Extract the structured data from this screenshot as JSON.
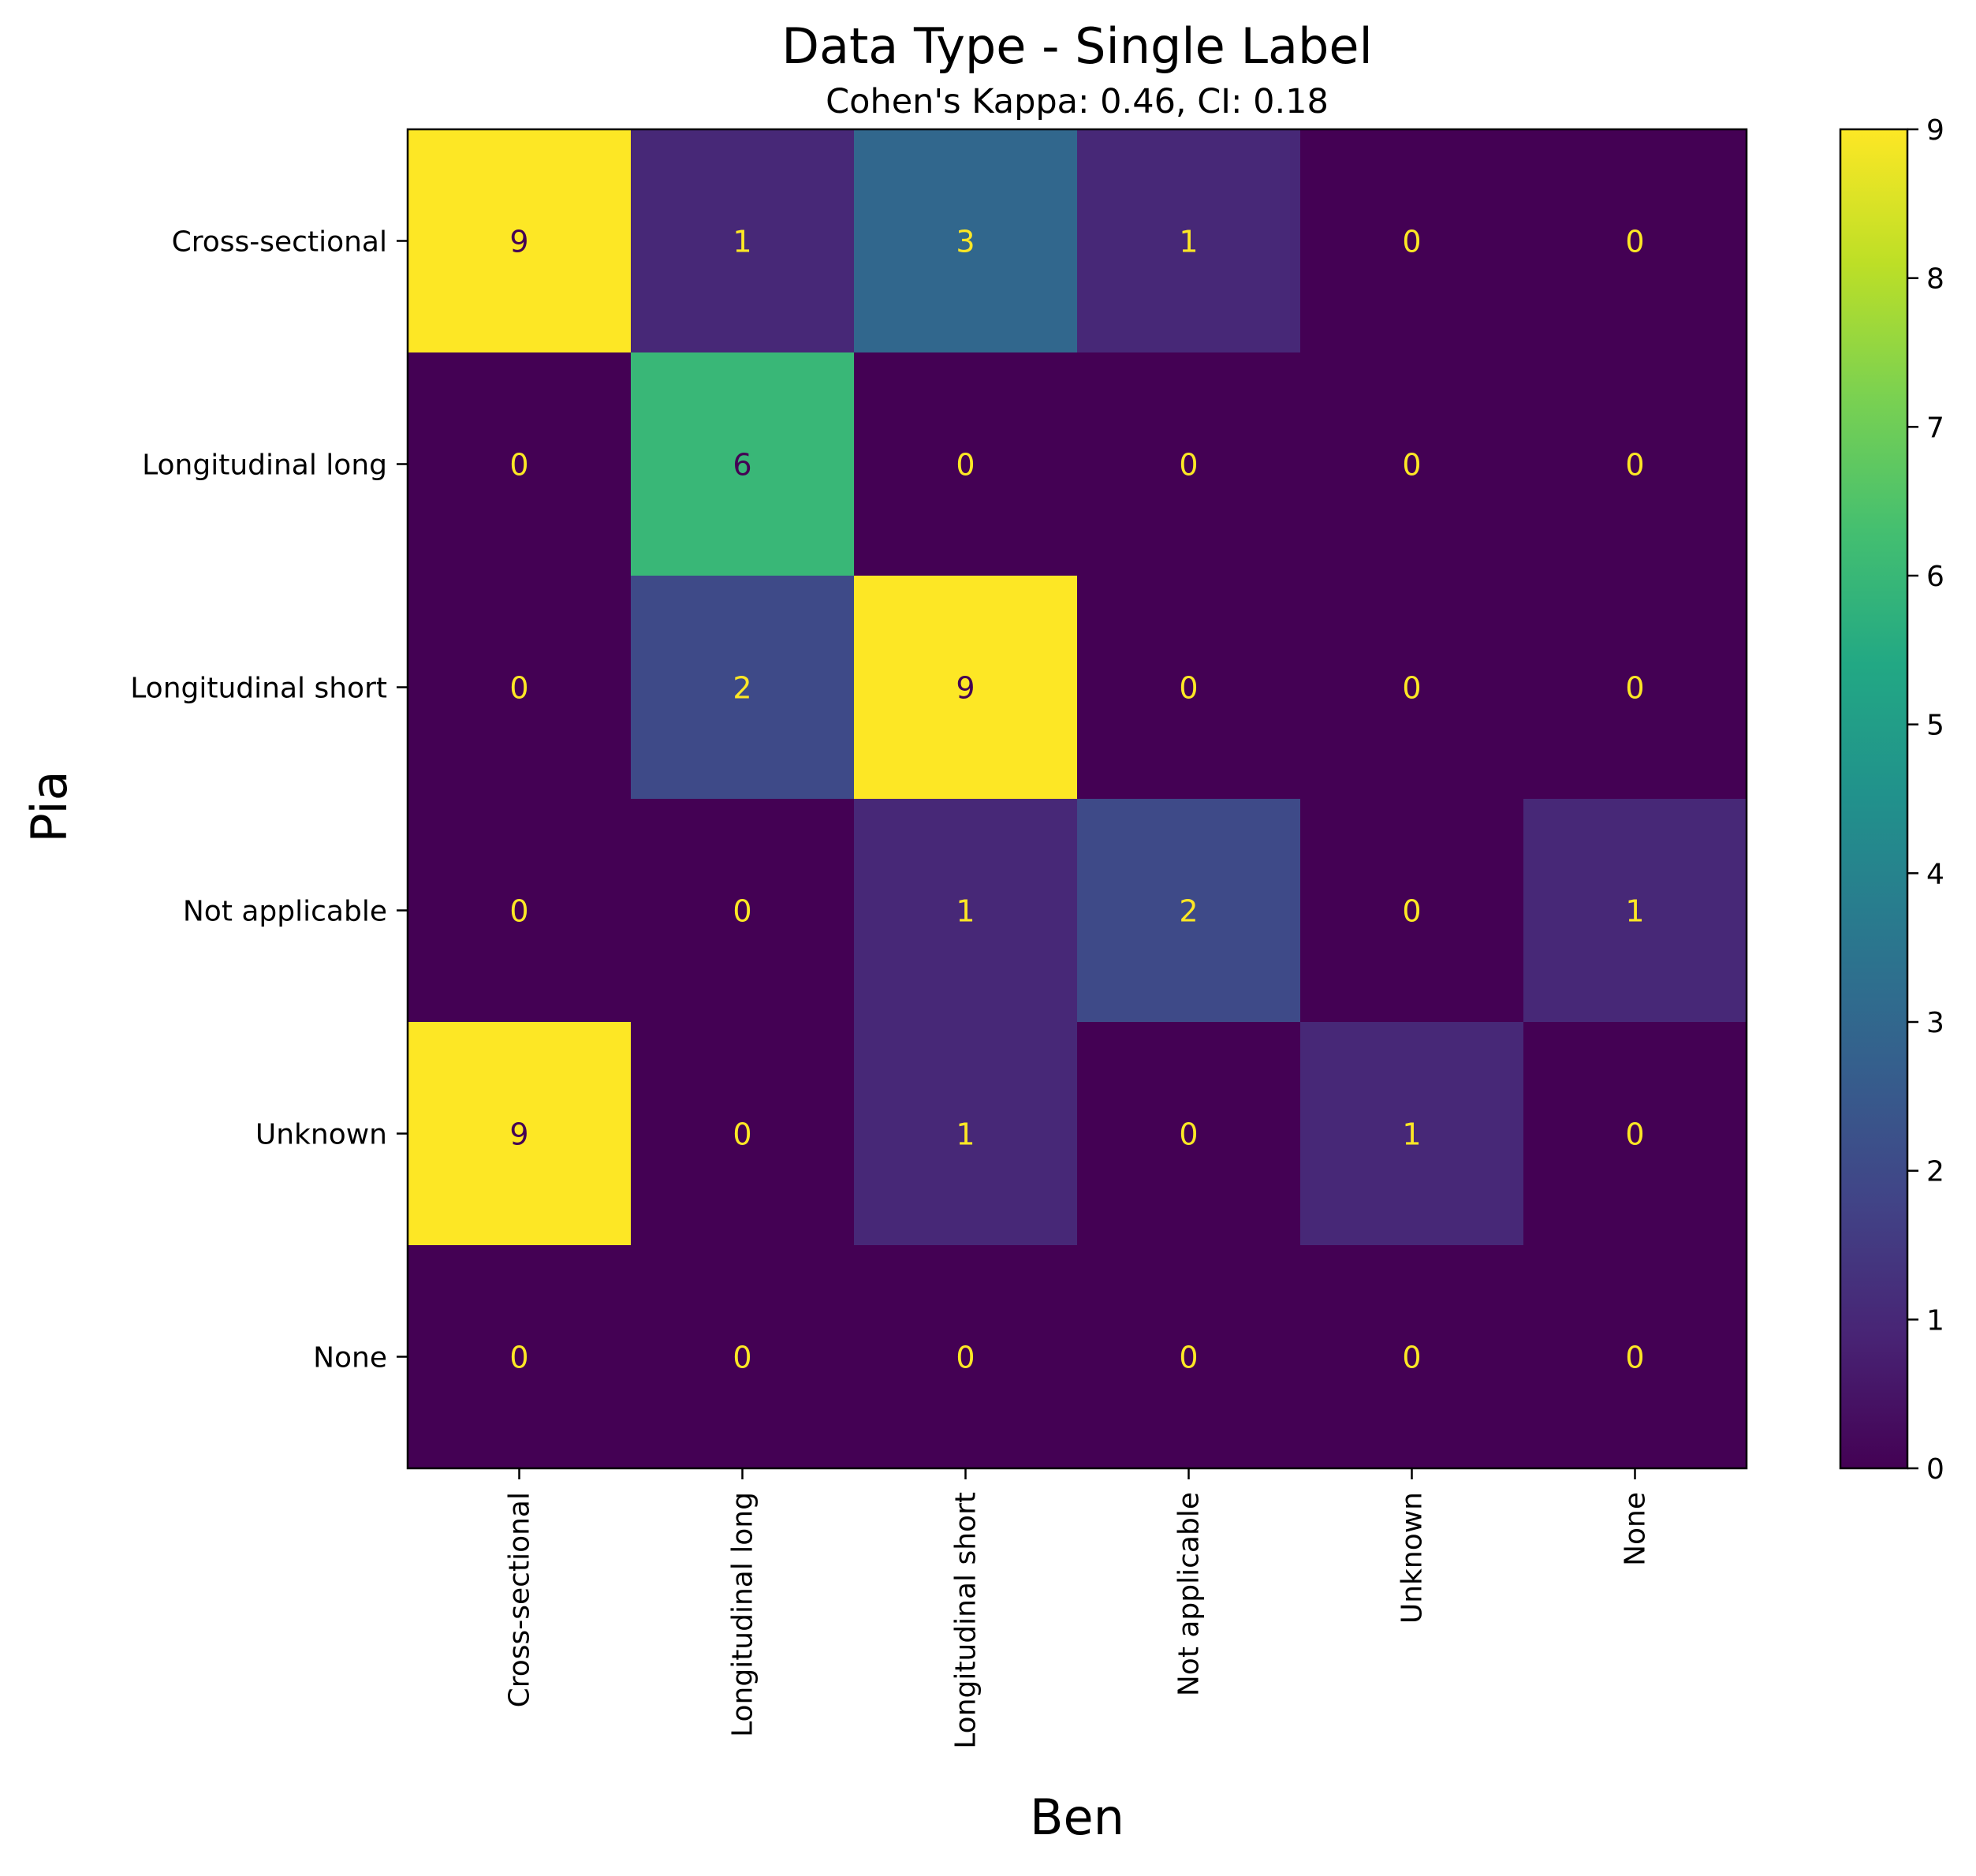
{
  "chart_data": {
    "type": "heatmap",
    "title": "Data Type - Single Label",
    "subtitle": "Cohen's Kappa: 0.46, CI: 0.18",
    "xlabel": "Ben",
    "ylabel": "Pia",
    "x_categories": [
      "Cross-sectional",
      "Longitudinal long",
      "Longitudinal short",
      "Not applicable",
      "Unknown",
      "None"
    ],
    "y_categories": [
      "Cross-sectional",
      "Longitudinal long",
      "Longitudinal short",
      "Not applicable",
      "Unknown",
      "None"
    ],
    "values": [
      [
        9,
        1,
        3,
        1,
        0,
        0
      ],
      [
        0,
        6,
        0,
        0,
        0,
        0
      ],
      [
        0,
        2,
        9,
        0,
        0,
        0
      ],
      [
        0,
        0,
        1,
        2,
        0,
        1
      ],
      [
        9,
        0,
        1,
        0,
        1,
        0
      ],
      [
        0,
        0,
        0,
        0,
        0,
        0
      ]
    ],
    "colorbar": {
      "min": 0,
      "max": 9,
      "ticks": [
        0,
        1,
        2,
        3,
        4,
        5,
        6,
        7,
        8,
        9
      ],
      "colormap": "viridis"
    }
  }
}
